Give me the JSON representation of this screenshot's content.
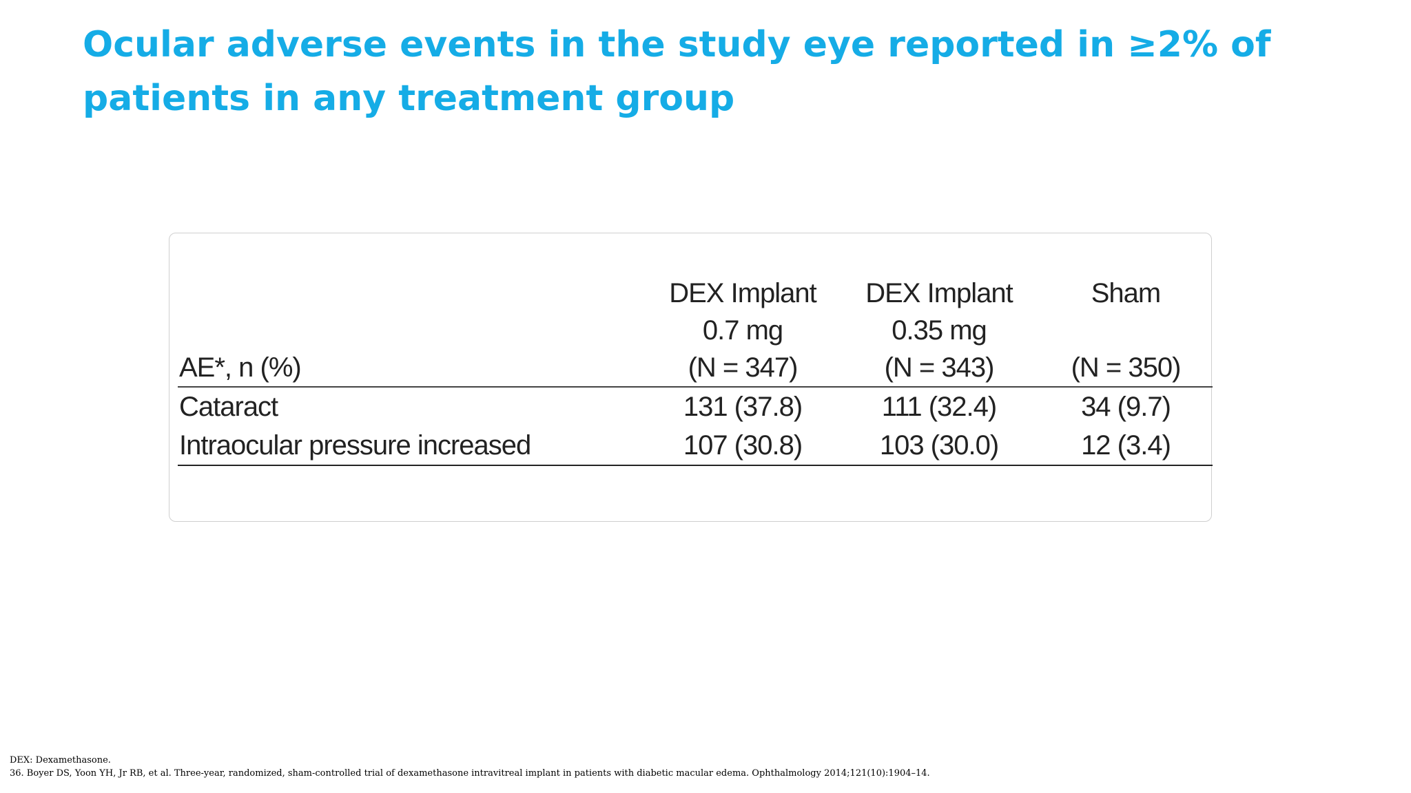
{
  "slide": {
    "title": "Ocular adverse events in the study eye reported in ≥2% of patients in any treatment group"
  },
  "table": {
    "row_header": "AE*, n (%)",
    "columns": [
      {
        "line1": "DEX Implant",
        "line2": "0.7 mg",
        "line3": "(N = 347)"
      },
      {
        "line1": "DEX Implant",
        "line2": "0.35 mg",
        "line3": "(N = 343)"
      },
      {
        "line1": "Sham",
        "line2": "",
        "line3": "(N = 350)"
      }
    ],
    "rows": [
      {
        "label": "Cataract",
        "values": [
          "131 (37.8)",
          "111 (32.4)",
          "34 (9.7)"
        ]
      },
      {
        "label": "Intraocular pressure increased",
        "values": [
          "107 (30.8)",
          "103 (30.0)",
          "12 (3.4)"
        ]
      }
    ]
  },
  "footnotes": {
    "abbreviation": "DEX: Dexamethasone.",
    "reference": "36. Boyer DS, Yoon YH, Jr RB, et al. Three-year, randomized, sham-controlled trial of dexamethasone intravitreal implant in patients with diabetic macular edema. Ophthalmology 2014;121(10):1904–14."
  }
}
